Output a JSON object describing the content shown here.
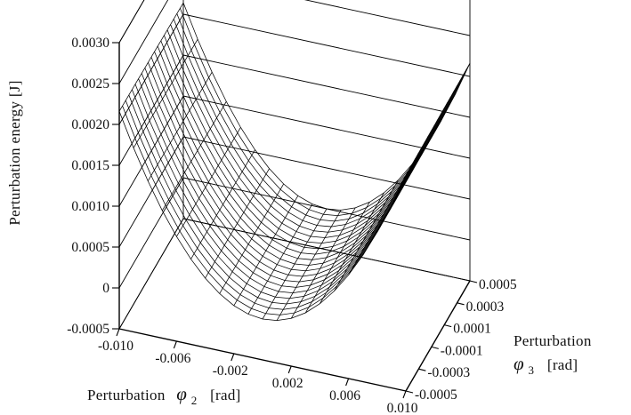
{
  "chart_data": {
    "type": "surface",
    "title": "",
    "zlabel": "Perturbation  energy  [J]",
    "xlabel": {
      "prefix": "Perturbation",
      "symbol": "φ",
      "subscript": "2",
      "unit": "[rad]"
    },
    "ylabel": {
      "prefix": "Perturbation",
      "symbol": "φ",
      "subscript": "3",
      "unit": "[rad]"
    },
    "x_range": [
      -0.01,
      0.01
    ],
    "y_range": [
      -0.0005,
      0.0005
    ],
    "z_range": [
      -0.0005,
      0.003
    ],
    "x_ticks": [
      "-0.010",
      "-0.006",
      "-0.002",
      "0.002",
      "0.006",
      "0.010"
    ],
    "y_ticks": [
      "-0.0005",
      "-0.0003",
      "-0.0001",
      "0.0001",
      "0.0003",
      "0.0005"
    ],
    "z_ticks": [
      "-0.0005",
      "0",
      "0.0005",
      "0.0010",
      "0.0015",
      "0.0020",
      "0.0025",
      "0.0030"
    ],
    "surface": {
      "model": "E = a*φ2^2 + b*φ2*φ3",
      "a": 21.5,
      "b": 2.08,
      "grid_x": 20,
      "grid_y": 20
    },
    "colors": {
      "line": "#000000",
      "background": "#ffffff"
    },
    "grid": true
  }
}
